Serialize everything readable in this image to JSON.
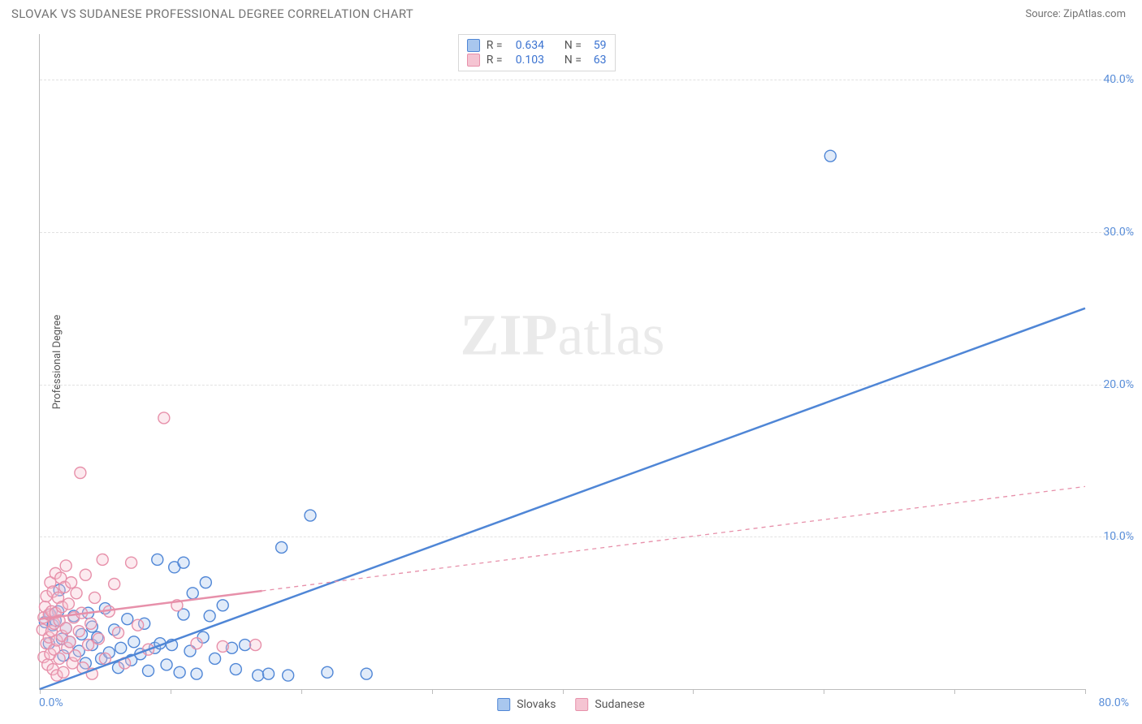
{
  "title": "SLOVAK VS SUDANESE PROFESSIONAL DEGREE CORRELATION CHART",
  "source_label": "Source: ZipAtlas.com",
  "watermark": {
    "bold": "ZIP",
    "rest": "atlas"
  },
  "ylabel": "Professional Degree",
  "chart": {
    "type": "scatter",
    "background_color": "#ffffff",
    "grid_color": "#e2e2e2",
    "axis_color": "#bdbdbd",
    "tick_label_color": "#5b8fd9",
    "text_color": "#555555",
    "xlim": [
      0,
      80
    ],
    "ylim": [
      0,
      43
    ],
    "x_origin_label": "0.0%",
    "x_max_label": "80.0%",
    "y_ticks": [
      {
        "v": 10,
        "label": "10.0%"
      },
      {
        "v": 20,
        "label": "20.0%"
      },
      {
        "v": 30,
        "label": "30.0%"
      },
      {
        "v": 40,
        "label": "40.0%"
      }
    ],
    "x_tick_positions": [
      0,
      10,
      20,
      30,
      40,
      50,
      60,
      70,
      80
    ],
    "marker_radius": 7,
    "marker_stroke_width": 1.4,
    "marker_fill_opacity": 0.35,
    "trend_line_width": 2.5,
    "series": [
      {
        "name": "Slovaks",
        "color_stroke": "#4f86d6",
        "color_fill": "#a9c7ee",
        "stats": {
          "R": "0.634",
          "N": "59"
        },
        "trend": {
          "x1": 0,
          "y1": 0,
          "x2": 80,
          "y2": 25.0,
          "dashed": false
        },
        "points": [
          [
            0.4,
            4.4
          ],
          [
            0.7,
            3.0
          ],
          [
            0.8,
            4.9
          ],
          [
            1.0,
            4.2
          ],
          [
            1.2,
            4.5
          ],
          [
            1.4,
            5.1
          ],
          [
            1.5,
            6.5
          ],
          [
            1.7,
            3.3
          ],
          [
            1.8,
            2.2
          ],
          [
            2.0,
            4.0
          ],
          [
            2.3,
            3.1
          ],
          [
            2.6,
            4.8
          ],
          [
            3.0,
            2.5
          ],
          [
            3.2,
            3.6
          ],
          [
            3.5,
            1.7
          ],
          [
            3.7,
            5.0
          ],
          [
            4.0,
            2.9
          ],
          [
            4.0,
            4.1
          ],
          [
            4.4,
            3.4
          ],
          [
            4.7,
            2.0
          ],
          [
            5.0,
            5.3
          ],
          [
            5.3,
            2.4
          ],
          [
            5.7,
            3.9
          ],
          [
            6.0,
            1.4
          ],
          [
            6.2,
            2.7
          ],
          [
            6.7,
            4.6
          ],
          [
            7.0,
            1.9
          ],
          [
            7.2,
            3.1
          ],
          [
            7.7,
            2.3
          ],
          [
            8.0,
            4.3
          ],
          [
            8.3,
            1.2
          ],
          [
            8.8,
            2.7
          ],
          [
            9.0,
            8.5
          ],
          [
            9.2,
            3.0
          ],
          [
            9.7,
            1.6
          ],
          [
            10.1,
            2.9
          ],
          [
            10.3,
            8.0
          ],
          [
            10.7,
            1.1
          ],
          [
            11.0,
            4.9
          ],
          [
            11.0,
            8.3
          ],
          [
            11.5,
            2.5
          ],
          [
            11.7,
            6.3
          ],
          [
            12.0,
            1.0
          ],
          [
            12.5,
            3.4
          ],
          [
            12.7,
            7.0
          ],
          [
            13.0,
            4.8
          ],
          [
            13.4,
            2.0
          ],
          [
            14.0,
            5.5
          ],
          [
            14.7,
            2.7
          ],
          [
            15.0,
            1.3
          ],
          [
            15.7,
            2.9
          ],
          [
            16.7,
            0.9
          ],
          [
            17.5,
            1.0
          ],
          [
            18.5,
            9.3
          ],
          [
            19.0,
            0.9
          ],
          [
            20.7,
            11.4
          ],
          [
            22.0,
            1.1
          ],
          [
            25.0,
            1.0
          ],
          [
            60.5,
            35.0
          ]
        ]
      },
      {
        "name": "Sudanese",
        "color_stroke": "#e790aa",
        "color_fill": "#f5c4d2",
        "stats": {
          "R": "0.103",
          "N": "63"
        },
        "trend": {
          "x1": 0,
          "y1": 4.6,
          "x2": 80,
          "y2": 13.3,
          "dashed_after_x": 17
        },
        "points": [
          [
            0.2,
            3.9
          ],
          [
            0.3,
            4.7
          ],
          [
            0.3,
            2.1
          ],
          [
            0.4,
            5.4
          ],
          [
            0.5,
            3.0
          ],
          [
            0.5,
            6.1
          ],
          [
            0.6,
            1.6
          ],
          [
            0.7,
            4.9
          ],
          [
            0.7,
            3.4
          ],
          [
            0.8,
            7.0
          ],
          [
            0.8,
            2.3
          ],
          [
            0.9,
            5.1
          ],
          [
            0.9,
            3.8
          ],
          [
            1.0,
            6.4
          ],
          [
            1.0,
            1.3
          ],
          [
            1.1,
            4.3
          ],
          [
            1.1,
            2.6
          ],
          [
            1.2,
            7.6
          ],
          [
            1.2,
            5.0
          ],
          [
            1.3,
            3.2
          ],
          [
            1.3,
            0.9
          ],
          [
            1.4,
            6.0
          ],
          [
            1.5,
            4.5
          ],
          [
            1.5,
            2.0
          ],
          [
            1.6,
            7.3
          ],
          [
            1.7,
            5.4
          ],
          [
            1.7,
            3.5
          ],
          [
            1.8,
            1.1
          ],
          [
            1.9,
            6.7
          ],
          [
            2.0,
            4.0
          ],
          [
            2.0,
            8.1
          ],
          [
            2.1,
            2.7
          ],
          [
            2.2,
            5.6
          ],
          [
            2.3,
            3.1
          ],
          [
            2.4,
            7.0
          ],
          [
            2.5,
            1.7
          ],
          [
            2.6,
            4.7
          ],
          [
            2.7,
            2.2
          ],
          [
            2.8,
            6.3
          ],
          [
            3.0,
            3.8
          ],
          [
            3.1,
            14.2
          ],
          [
            3.2,
            5.0
          ],
          [
            3.3,
            1.4
          ],
          [
            3.5,
            7.5
          ],
          [
            3.7,
            2.9
          ],
          [
            3.9,
            4.3
          ],
          [
            4.0,
            1.0
          ],
          [
            4.2,
            6.0
          ],
          [
            4.5,
            3.3
          ],
          [
            4.8,
            8.5
          ],
          [
            5.0,
            2.0
          ],
          [
            5.3,
            5.1
          ],
          [
            5.7,
            6.9
          ],
          [
            6.0,
            3.7
          ],
          [
            6.5,
            1.7
          ],
          [
            7.0,
            8.3
          ],
          [
            7.5,
            4.2
          ],
          [
            8.3,
            2.6
          ],
          [
            9.5,
            17.8
          ],
          [
            10.5,
            5.5
          ],
          [
            12.0,
            3.0
          ],
          [
            14.0,
            2.8
          ],
          [
            16.5,
            2.9
          ]
        ]
      }
    ]
  },
  "legend": {
    "series1": "Slovaks",
    "series2": "Sudanese"
  },
  "stats_labels": {
    "R": "R =",
    "N": "N ="
  }
}
